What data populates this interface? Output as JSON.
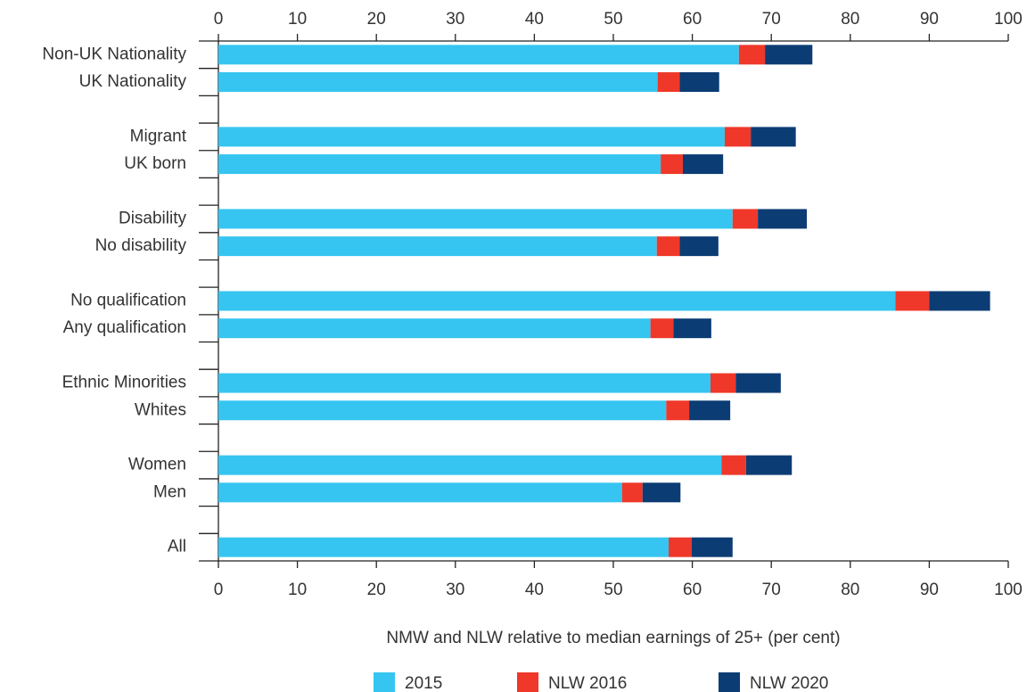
{
  "chart_data": {
    "type": "stacked-barh",
    "xlabel": "NMW and NLW relative to median earnings of 25+ (per cent)",
    "categories": [
      "Non-UK Nationality",
      "UK Nationality",
      null,
      "Migrant",
      "UK born",
      null,
      "Disability",
      "No disability",
      null,
      "No qualification",
      "Any qualification",
      null,
      "Ethnic Minorities",
      "Whites",
      null,
      "Women",
      "Men",
      null,
      "All"
    ],
    "series": [
      {
        "name": "2015",
        "color": "#36c5f0",
        "values": [
          65.9,
          55.6,
          null,
          64.1,
          56.0,
          null,
          65.1,
          55.5,
          null,
          85.7,
          54.7,
          null,
          62.3,
          56.7,
          null,
          63.7,
          51.1,
          null,
          57.0
        ]
      },
      {
        "name": "NLW 2016",
        "color": "#ef3829",
        "values": [
          3.3,
          2.8,
          null,
          3.3,
          2.8,
          null,
          3.2,
          2.9,
          null,
          4.3,
          2.9,
          null,
          3.2,
          2.9,
          null,
          3.1,
          2.6,
          null,
          2.9
        ]
      },
      {
        "name": "NLW 2020",
        "color": "#0c3c74",
        "values": [
          6.0,
          5.0,
          null,
          5.7,
          5.1,
          null,
          6.2,
          4.9,
          null,
          7.7,
          4.8,
          null,
          5.7,
          5.2,
          null,
          5.8,
          4.8,
          null,
          5.2
        ]
      }
    ],
    "xlim": [
      0,
      100
    ],
    "xticks": [
      0,
      10,
      20,
      30,
      40,
      50,
      60,
      70,
      80,
      90,
      100
    ],
    "legend": "bottom"
  }
}
